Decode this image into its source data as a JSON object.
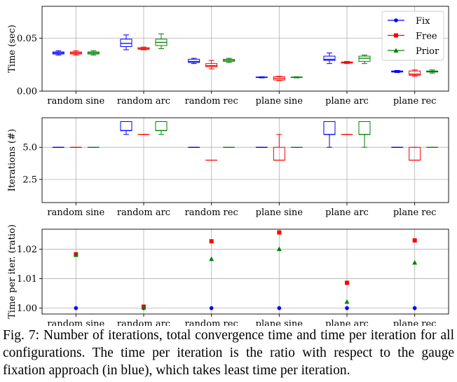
{
  "colors": {
    "fix": "#0000ff",
    "free": "#ff0000",
    "prior": "#008000",
    "grid": "#b0b0b0"
  },
  "chart_data": [
    {
      "type": "box",
      "ylabel": "Time (sec)",
      "ylim": [
        0,
        0.08
      ],
      "yticks": [
        0.0,
        0.05
      ],
      "ytick_labels": [
        "0.00",
        "0.05"
      ],
      "grid": true,
      "categories": [
        "random sine",
        "random arc",
        "random rec",
        "plane sine",
        "plane arc",
        "plane rec"
      ],
      "legend": {
        "position": "top-right",
        "entries": [
          {
            "name": "Fix",
            "marker": "circle"
          },
          {
            "name": "Free",
            "marker": "square"
          },
          {
            "name": "Prior",
            "marker": "triangle"
          }
        ]
      },
      "series": [
        {
          "name": "Fix",
          "boxes": [
            [
              0.034,
              0.035,
              0.036,
              0.037,
              0.038
            ],
            [
              0.039,
              0.042,
              0.045,
              0.049,
              0.053
            ],
            [
              0.026,
              0.027,
              0.028,
              0.03,
              0.031
            ],
            [
              0.0125,
              0.0128,
              0.013,
              0.0133,
              0.0135
            ],
            [
              0.026,
              0.029,
              0.03,
              0.033,
              0.036
            ],
            [
              0.0175,
              0.018,
              0.0185,
              0.019,
              0.0195
            ]
          ]
        },
        {
          "name": "Free",
          "boxes": [
            [
              0.034,
              0.035,
              0.036,
              0.037,
              0.038
            ],
            [
              0.039,
              0.0395,
              0.04,
              0.041,
              0.0415
            ],
            [
              0.021,
              0.023,
              0.024,
              0.026,
              0.029
            ],
            [
              0.01,
              0.0105,
              0.012,
              0.0135,
              0.014
            ],
            [
              0.026,
              0.0265,
              0.027,
              0.0275,
              0.028
            ],
            [
              0.014,
              0.015,
              0.016,
              0.019,
              0.02
            ]
          ]
        },
        {
          "name": "Prior",
          "boxes": [
            [
              0.034,
              0.035,
              0.036,
              0.037,
              0.038
            ],
            [
              0.04,
              0.043,
              0.046,
              0.049,
              0.054
            ],
            [
              0.027,
              0.028,
              0.029,
              0.03,
              0.031
            ],
            [
              0.0125,
              0.0128,
              0.013,
              0.0133,
              0.0135
            ],
            [
              0.026,
              0.028,
              0.031,
              0.033,
              0.034
            ],
            [
              0.017,
              0.018,
              0.0185,
              0.019,
              0.02
            ]
          ]
        }
      ]
    },
    {
      "type": "box",
      "ylabel": "Iterations (#)",
      "ylim": [
        0.7,
        7.3
      ],
      "yticks": [
        2.5,
        5.0
      ],
      "ytick_labels": [
        "2.5",
        "5.0"
      ],
      "grid": true,
      "categories": [
        "random sine",
        "random arc",
        "random rec",
        "plane sine",
        "plane arc",
        "plane rec"
      ],
      "series": [
        {
          "name": "Fix",
          "boxes": [
            [
              5,
              5,
              5,
              5,
              5
            ],
            [
              6,
              6.3,
              6.3,
              7,
              7
            ],
            [
              5,
              5,
              5,
              5,
              5
            ],
            [
              5,
              5,
              5,
              5,
              5
            ],
            [
              5,
              6,
              6,
              7,
              7
            ],
            [
              5,
              5,
              5,
              5,
              5
            ]
          ]
        },
        {
          "name": "Free",
          "boxes": [
            [
              5,
              5,
              5,
              5,
              5
            ],
            [
              6,
              6,
              6,
              6,
              6
            ],
            [
              4,
              4,
              4,
              4,
              4
            ],
            [
              4,
              4,
              4,
              5,
              6
            ],
            [
              6,
              6,
              6,
              6,
              6
            ],
            [
              4,
              4,
              4,
              5,
              5
            ]
          ]
        },
        {
          "name": "Prior",
          "boxes": [
            [
              5,
              5,
              5,
              5,
              5
            ],
            [
              6,
              6.3,
              6.3,
              7,
              7
            ],
            [
              5,
              5,
              5,
              5,
              5
            ],
            [
              5,
              5,
              5,
              5,
              5
            ],
            [
              5,
              6,
              6,
              7,
              7
            ],
            [
              5,
              5,
              5,
              5,
              5
            ]
          ]
        }
      ]
    },
    {
      "type": "scatter",
      "ylabel": "Time per iter. (ratio)",
      "ylim": [
        0.998,
        1.0268
      ],
      "yticks": [
        1.0,
        1.01,
        1.02
      ],
      "ytick_labels": [
        "1.00",
        "1.01",
        "1.02"
      ],
      "grid": true,
      "categories": [
        "random sine",
        "random arc",
        "random rec",
        "plane sine",
        "plane arc",
        "plane rec"
      ],
      "series": [
        {
          "name": "Fix",
          "marker": "circle",
          "values": [
            1.0,
            1.0,
            1.0,
            1.0,
            1.0,
            1.0
          ]
        },
        {
          "name": "Free",
          "marker": "square",
          "values": [
            1.0183,
            1.0005,
            1.0227,
            1.0257,
            1.0086,
            1.023
          ]
        },
        {
          "name": "Prior",
          "marker": "triangle",
          "values": [
            1.0181,
            1.0003,
            1.0167,
            1.0201,
            1.0022,
            1.0155
          ]
        }
      ]
    }
  ],
  "caption": "Fig. 7:  Number of iterations, total convergence time and time per iteration for all configurations. The time per iteration is the ratio with respect to the gauge fixation approach (in blue), which takes least time per iteration."
}
